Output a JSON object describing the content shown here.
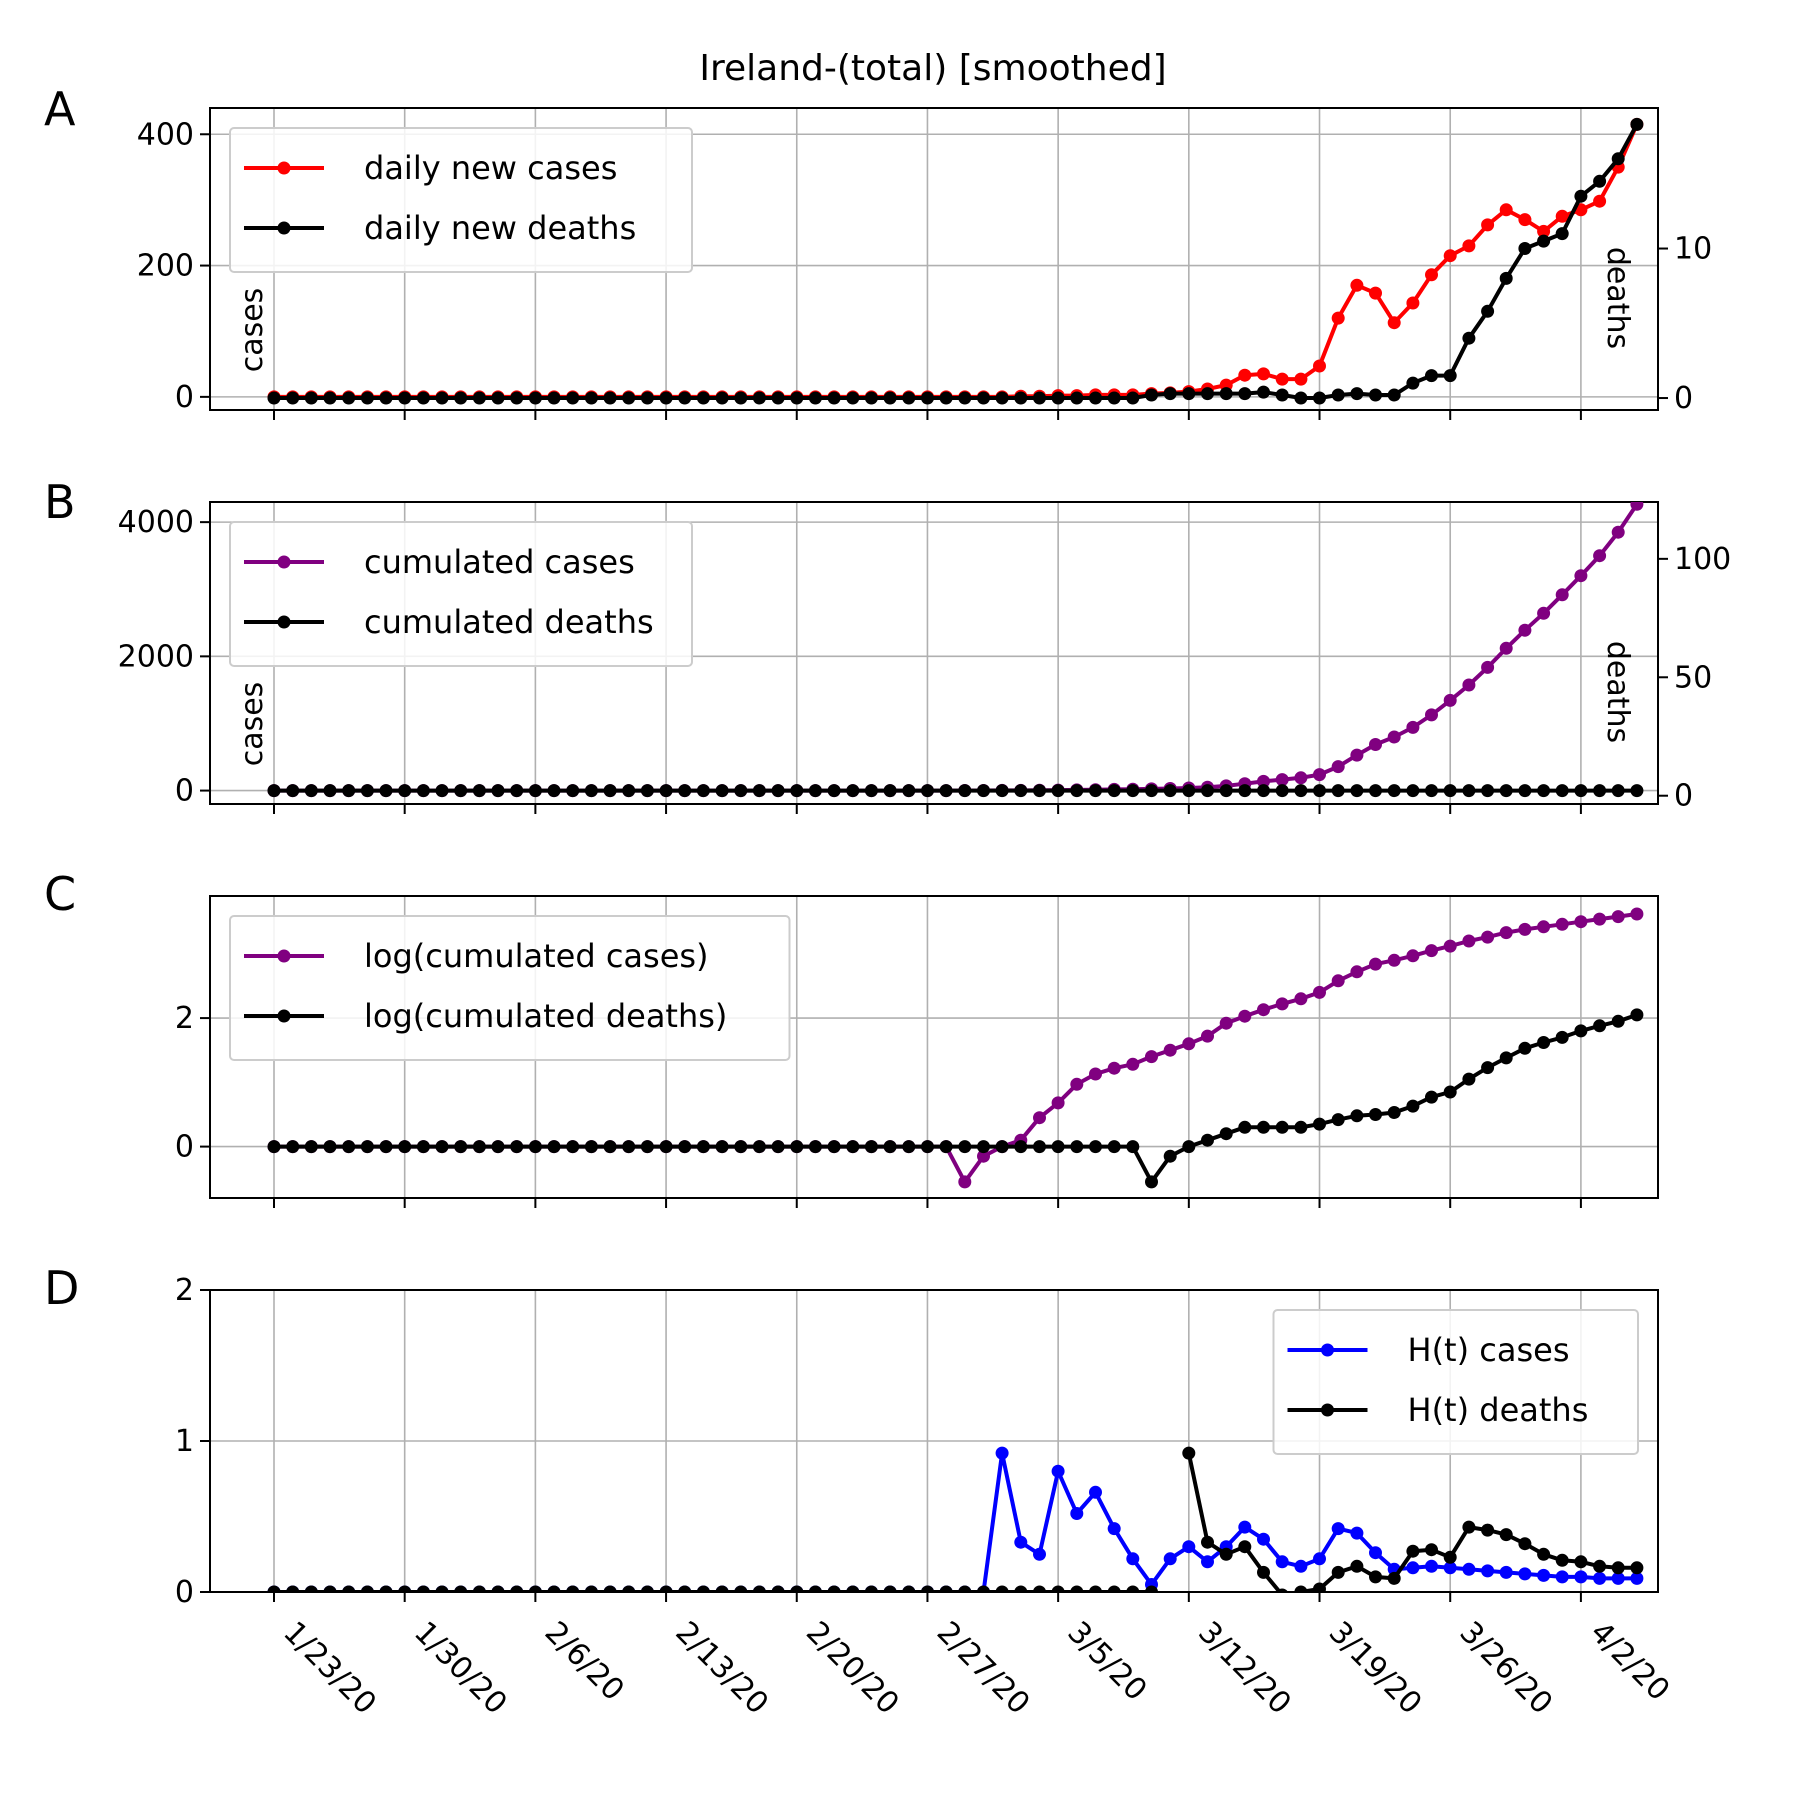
{
  "chart_data": {
    "title": "Ireland-(total) [smoothed]",
    "type": "line",
    "x_start": "1/22/20",
    "x_tick_labels": [
      "1/23/20",
      "1/30/20",
      "2/6/20",
      "2/13/20",
      "2/20/20",
      "2/27/20",
      "3/5/20",
      "3/12/20",
      "3/19/20",
      "3/26/20",
      "4/2/20"
    ],
    "panels": [
      {
        "letter": "A",
        "ylabel_left": "cases",
        "ylabel_right": "deaths",
        "ylim": [
          -20,
          440
        ],
        "yticks": [
          0,
          200,
          400
        ],
        "ylim_right": [
          -0.8,
          19.4
        ],
        "yticks_right": [
          0,
          10
        ],
        "legend_position": "top-left",
        "series": [
          {
            "name": "daily new cases",
            "color": "#ff0000",
            "axis": "left",
            "values": [
              0,
              0,
              0,
              0,
              0,
              0,
              0,
              0,
              0,
              0,
              0,
              0,
              0,
              0,
              0,
              0,
              0,
              0,
              0,
              0,
              0,
              0,
              0,
              0,
              0,
              0,
              0,
              0,
              0,
              0,
              0,
              0,
              0,
              0,
              0,
              0,
              0,
              0,
              0,
              0,
              1,
              1,
              2,
              2,
              3,
              3,
              3,
              5,
              6,
              8,
              12,
              18,
              33,
              35,
              27,
              27,
              47,
              120,
              170,
              158,
              113,
              143,
              186,
              215,
              230,
              262,
              285,
              270,
              252,
              275,
              285,
              298,
              350,
              415
            ]
          },
          {
            "name": "daily new deaths",
            "color": "#000000",
            "axis": "right",
            "values": [
              0,
              0,
              0,
              0,
              0,
              0,
              0,
              0,
              0,
              0,
              0,
              0,
              0,
              0,
              0,
              0,
              0,
              0,
              0,
              0,
              0,
              0,
              0,
              0,
              0,
              0,
              0,
              0,
              0,
              0,
              0,
              0,
              0,
              0,
              0,
              0,
              0,
              0,
              0,
              0,
              0,
              0,
              0,
              0,
              0,
              0,
              0,
              0.2,
              0.3,
              0.3,
              0.3,
              0.3,
              0.3,
              0.4,
              0.2,
              0,
              0,
              0.2,
              0.3,
              0.2,
              0.2,
              1,
              1.5,
              1.5,
              4,
              5.8,
              8,
              10,
              10.5,
              11,
              13.5,
              14.5,
              16,
              18.3
            ]
          }
        ]
      },
      {
        "letter": "B",
        "ylabel_left": "cases",
        "ylabel_right": "deaths",
        "ylim": [
          -200,
          4300
        ],
        "yticks": [
          0,
          2000,
          4000
        ],
        "ylim_right": [
          -3.5,
          124
        ],
        "yticks_right": [
          0,
          50,
          100
        ],
        "legend_position": "top-left",
        "series": [
          {
            "name": "cumulated cases",
            "color": "#800080",
            "axis": "left",
            "values": [
              0,
              0,
              0,
              0,
              0,
              0,
              0,
              0,
              0,
              0,
              0,
              0,
              0,
              0,
              0,
              0,
              0,
              0,
              0,
              0,
              0,
              0,
              0,
              0,
              0,
              0,
              0,
              0,
              0,
              0,
              0,
              0,
              0,
              0,
              0,
              0,
              0,
              1,
              1,
              2,
              3,
              5,
              7,
              10,
              13,
              17,
              20,
              25,
              31,
              39,
              51,
              69,
              102,
              137,
              164,
              191,
              238,
              358,
              528,
              686,
              799,
              942,
              1128,
              1343,
              1573,
              1835,
              2120,
              2390,
              2642,
              2917,
              3202,
              3500,
              3850,
              4265
            ]
          },
          {
            "name": "cumulated deaths",
            "color": "#000000",
            "axis": "left",
            "values": [
              0,
              0,
              0,
              0,
              0,
              0,
              0,
              0,
              0,
              0,
              0,
              0,
              0,
              0,
              0,
              0,
              0,
              0,
              0,
              0,
              0,
              0,
              0,
              0,
              0,
              0,
              0,
              0,
              0,
              0,
              0,
              0,
              0,
              0,
              0,
              0,
              0,
              0,
              0,
              0,
              0,
              0,
              0,
              0,
              0,
              0,
              0,
              0,
              0,
              0,
              0,
              0,
              0,
              0,
              0,
              0,
              0,
              0,
              0,
              0,
              0,
              0,
              0,
              0,
              0,
              0,
              0,
              0,
              0,
              0,
              0,
              0,
              0,
              0
            ]
          }
        ]
      },
      {
        "letter": "C",
        "ylabel_left": "",
        "ylim": [
          -0.8,
          3.9
        ],
        "yticks": [
          0,
          2
        ],
        "legend_position": "top-left",
        "series": [
          {
            "name": "log(cumulated cases)",
            "color": "#800080",
            "axis": "left",
            "values": [
              0,
              0,
              0,
              0,
              0,
              0,
              0,
              0,
              0,
              0,
              0,
              0,
              0,
              0,
              0,
              0,
              0,
              0,
              0,
              0,
              0,
              0,
              0,
              0,
              0,
              0,
              0,
              0,
              0,
              0,
              0,
              0,
              0,
              0,
              0,
              0,
              0,
              -0.55,
              -0.15,
              0,
              0.1,
              0.45,
              0.68,
              0.97,
              1.13,
              1.22,
              1.28,
              1.4,
              1.5,
              1.6,
              1.72,
              1.92,
              2.03,
              2.13,
              2.22,
              2.3,
              2.4,
              2.58,
              2.72,
              2.84,
              2.9,
              2.97,
              3.05,
              3.12,
              3.2,
              3.26,
              3.33,
              3.38,
              3.42,
              3.46,
              3.5,
              3.54,
              3.58,
              3.62
            ]
          },
          {
            "name": "log(cumulated deaths)",
            "color": "#000000",
            "axis": "left",
            "values": [
              0,
              0,
              0,
              0,
              0,
              0,
              0,
              0,
              0,
              0,
              0,
              0,
              0,
              0,
              0,
              0,
              0,
              0,
              0,
              0,
              0,
              0,
              0,
              0,
              0,
              0,
              0,
              0,
              0,
              0,
              0,
              0,
              0,
              0,
              0,
              0,
              0,
              0,
              0,
              0,
              0,
              0,
              0,
              0,
              0,
              0,
              0,
              -0.55,
              -0.15,
              0,
              0.1,
              0.2,
              0.3,
              0.3,
              0.3,
              0.3,
              0.35,
              0.42,
              0.48,
              0.5,
              0.53,
              0.63,
              0.77,
              0.85,
              1.05,
              1.23,
              1.38,
              1.53,
              1.62,
              1.7,
              1.8,
              1.88,
              1.95,
              2.05
            ]
          }
        ]
      },
      {
        "letter": "D",
        "ylabel_left": "",
        "ylim": [
          0,
          2
        ],
        "yticks": [
          0,
          1,
          2
        ],
        "legend_position": "top-right",
        "series": [
          {
            "name": "H(t) cases",
            "color": "#0000ff",
            "axis": "left",
            "values": [
              0,
              0,
              0,
              0,
              0,
              0,
              0,
              0,
              0,
              0,
              0,
              0,
              0,
              0,
              0,
              0,
              0,
              0,
              0,
              0,
              0,
              0,
              0,
              0,
              0,
              0,
              0,
              0,
              0,
              0,
              0,
              0,
              0,
              0,
              0,
              0,
              0,
              0,
              0,
              0.92,
              0.33,
              0.25,
              0.8,
              0.52,
              0.66,
              0.42,
              0.22,
              0.05,
              0.22,
              0.3,
              0.2,
              0.3,
              0.43,
              0.35,
              0.2,
              0.17,
              0.22,
              0.42,
              0.39,
              0.26,
              0.15,
              0.16,
              0.17,
              0.16,
              0.15,
              0.14,
              0.13,
              0.12,
              0.11,
              0.1,
              0.1,
              0.09,
              0.09,
              0.09
            ]
          },
          {
            "name": "H(t) deaths",
            "color": "#000000",
            "axis": "left",
            "values": [
              0,
              0,
              0,
              0,
              0,
              0,
              0,
              0,
              0,
              0,
              0,
              0,
              0,
              0,
              0,
              0,
              0,
              0,
              0,
              0,
              0,
              0,
              0,
              0,
              0,
              0,
              0,
              0,
              0,
              0,
              0,
              0,
              0,
              0,
              0,
              0,
              0,
              0,
              0,
              0,
              0,
              0,
              0,
              0,
              0,
              0,
              0,
              0,
              null,
              0.92,
              0.33,
              0.25,
              0.3,
              0.13,
              -0.02,
              0,
              0.02,
              0.13,
              0.17,
              0.1,
              0.09,
              0.27,
              0.28,
              0.23,
              0.43,
              0.41,
              0.38,
              0.32,
              0.25,
              0.21,
              0.2,
              0.17,
              0.16,
              0.16
            ]
          }
        ]
      }
    ]
  }
}
